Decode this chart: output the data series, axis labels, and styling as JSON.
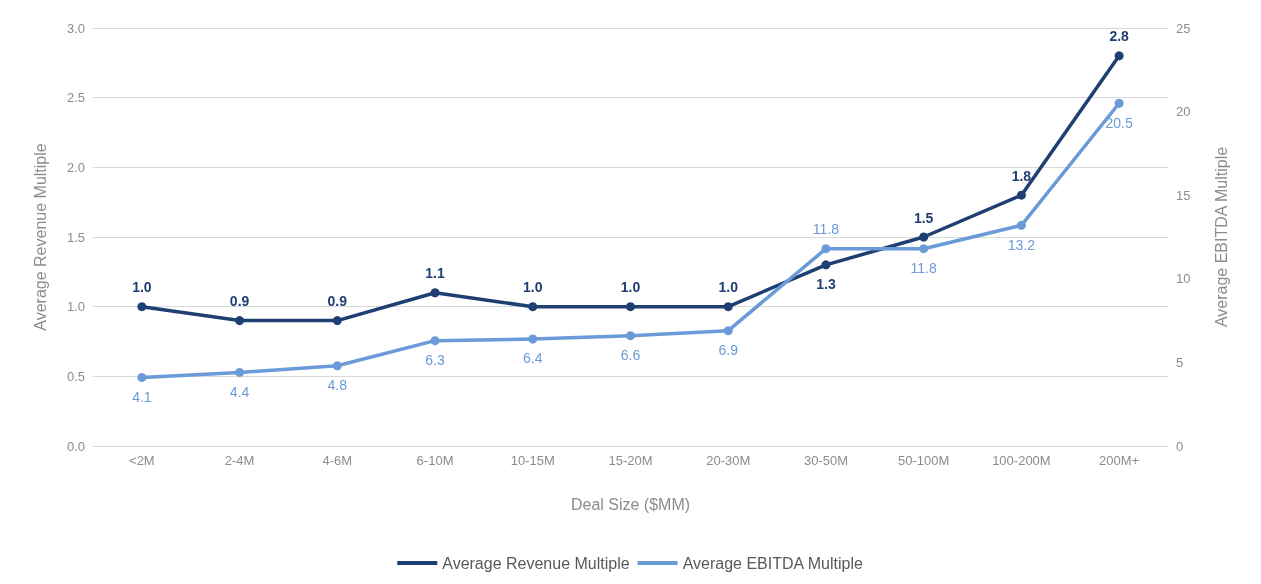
{
  "chart_data": {
    "type": "line",
    "xlabel": "Deal Size ($MM)",
    "ylabel": "Average Revenue Multiple",
    "y2label": "Average EBITDA Multiple",
    "categories": [
      "<2M",
      "2-4M",
      "4-6M",
      "6-10M",
      "10-15M",
      "15-20M",
      "20-30M",
      "30-50M",
      "50-100M",
      "100-200M",
      "200M+"
    ],
    "series": [
      {
        "name": "Average Revenue Multiple",
        "color": "#1f3f73",
        "values": [
          1.0,
          0.9,
          0.9,
          1.1,
          1.0,
          1.0,
          1.0,
          1.3,
          1.5,
          1.8,
          2.8
        ],
        "value_labels": [
          "1.0",
          "0.9",
          "0.9",
          "1.1",
          "1.0",
          "1.0",
          "1.0",
          "1.3",
          "1.5",
          "1.8",
          "2.8"
        ]
      },
      {
        "name": "Average EBITDA Multiple",
        "color": "#6a9ad8",
        "axis": "y2",
        "values": [
          4.1,
          4.4,
          4.8,
          6.3,
          6.4,
          6.6,
          6.9,
          11.8,
          11.8,
          13.2,
          20.5
        ]
      }
    ],
    "ylim": [
      0,
      3
    ],
    "yticks": [
      {
        "value": 0,
        "label": "0.0"
      },
      {
        "value": 0.5,
        "label": "0.5"
      },
      {
        "value": 1,
        "label": "1.0"
      },
      {
        "value": 1.5,
        "label": "1.5"
      },
      {
        "value": 2,
        "label": "2.0"
      },
      {
        "value": 2.5,
        "label": "2.5"
      },
      {
        "value": 3,
        "label": "3.0"
      }
    ],
    "y2lim": [
      0,
      25
    ],
    "y2ticks": [
      0,
      5,
      10,
      15,
      20,
      25
    ],
    "grid": "y",
    "legend": "bottom",
    "marker": "circle",
    "line_style": "solid",
    "data_labels": true
  }
}
